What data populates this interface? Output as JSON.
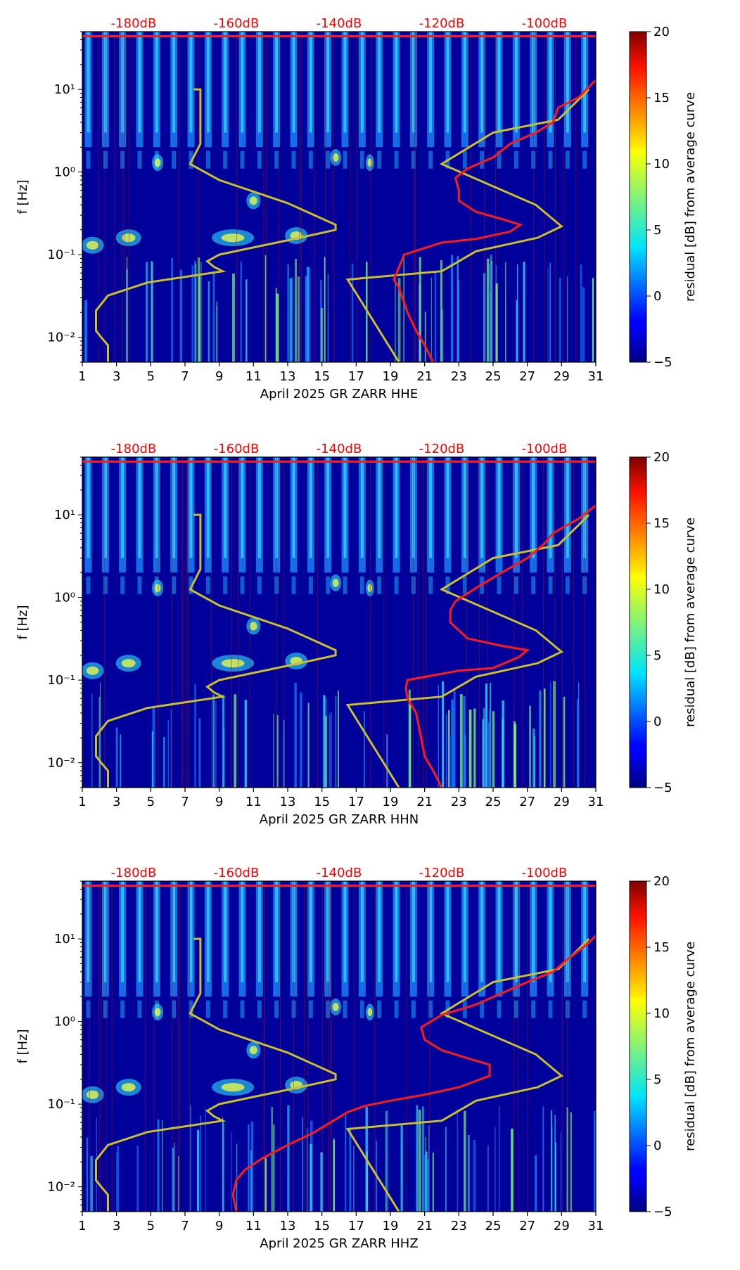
{
  "chart_data": [
    {
      "type": "heatmap",
      "channel": "HHE",
      "xlabel": "April 2025 GR ZARR  HHE",
      "ylabel": "f [Hz]",
      "x_ticks": [
        "1",
        "3",
        "5",
        "7",
        "9",
        "11",
        "13",
        "15",
        "17",
        "19",
        "21",
        "23",
        "25",
        "27",
        "29",
        "31"
      ],
      "xlim": [
        1,
        31
      ],
      "ylim": [
        0.005,
        50
      ],
      "y_ticks": [
        {
          "value": 0.01,
          "label": "10⁻²"
        },
        {
          "value": 0.1,
          "label": "10⁻¹"
        },
        {
          "value": 1,
          "label": "10⁰"
        },
        {
          "value": 10,
          "label": "10¹"
        }
      ],
      "db_labels": [
        {
          "label": "-180dB",
          "x": 4
        },
        {
          "label": "-160dB",
          "x": 10
        },
        {
          "label": "-140dB",
          "x": 16
        },
        {
          "label": "-120dB",
          "x": 22
        },
        {
          "label": "-100dB",
          "x": 28
        }
      ],
      "colorbar": {
        "label": "residual [dB] from average curve",
        "min": -5,
        "max": 20,
        "ticks": [
          "20",
          "15",
          "10",
          "5",
          "0",
          "−5"
        ]
      },
      "yellow_curve": [
        [
          2.5,
          0.005
        ],
        [
          2.5,
          0.008
        ],
        [
          2.1,
          0.01
        ],
        [
          1.8,
          0.012
        ],
        [
          1.8,
          0.021
        ],
        [
          2.5,
          0.032
        ],
        [
          4.8,
          0.046
        ],
        [
          9.2,
          0.063
        ],
        [
          8.7,
          0.071
        ],
        [
          8.3,
          0.083
        ],
        [
          9.0,
          0.1
        ],
        [
          13.7,
          0.16
        ],
        [
          15.8,
          0.2
        ],
        [
          15.8,
          0.23
        ],
        [
          13.0,
          0.42
        ],
        [
          9.0,
          0.8
        ],
        [
          7.3,
          1.25
        ],
        [
          7.9,
          2.2
        ],
        [
          7.9,
          10.0
        ],
        [
          7.5,
          10.0
        ]
      ],
      "yellow_curve2": [
        [
          19.5,
          0.005
        ],
        [
          16.5,
          0.05
        ],
        [
          22.0,
          0.063
        ],
        [
          24.0,
          0.11
        ],
        [
          27.6,
          0.16
        ],
        [
          29.0,
          0.22
        ],
        [
          27.5,
          0.4
        ],
        [
          22.0,
          1.25
        ],
        [
          25.0,
          3.0
        ],
        [
          28.8,
          4.3
        ],
        [
          30.6,
          10.0
        ]
      ],
      "red_curve": [
        [
          21.5,
          0.005
        ],
        [
          21.0,
          0.008
        ],
        [
          20.5,
          0.012
        ],
        [
          20.0,
          0.02
        ],
        [
          19.5,
          0.04
        ],
        [
          19.2,
          0.05
        ],
        [
          19.5,
          0.07
        ],
        [
          19.8,
          0.1
        ],
        [
          22.0,
          0.14
        ],
        [
          24.0,
          0.155
        ],
        [
          26.0,
          0.19
        ],
        [
          26.6,
          0.23
        ],
        [
          25.5,
          0.27
        ],
        [
          24.0,
          0.33
        ],
        [
          23.0,
          0.45
        ],
        [
          23.0,
          0.6
        ],
        [
          22.8,
          0.85
        ],
        [
          23.5,
          1.1
        ],
        [
          25.0,
          1.5
        ],
        [
          26.0,
          2.2
        ],
        [
          27.5,
          3.0
        ],
        [
          28.5,
          4.0
        ],
        [
          28.8,
          6.0
        ],
        [
          30.0,
          8.0
        ],
        [
          31.0,
          13.0
        ]
      ],
      "red_top_y": 44
    },
    {
      "type": "heatmap",
      "channel": "HHN",
      "xlabel": "April 2025 GR ZARR  HHN",
      "ylabel": "f [Hz]",
      "x_ticks": [
        "1",
        "3",
        "5",
        "7",
        "9",
        "11",
        "13",
        "15",
        "17",
        "19",
        "21",
        "23",
        "25",
        "27",
        "29",
        "31"
      ],
      "xlim": [
        1,
        31
      ],
      "ylim": [
        0.005,
        50
      ],
      "y_ticks": [
        {
          "value": 0.01,
          "label": "10⁻²"
        },
        {
          "value": 0.1,
          "label": "10⁻¹"
        },
        {
          "value": 1,
          "label": "10⁰"
        },
        {
          "value": 10,
          "label": "10¹"
        }
      ],
      "db_labels": [
        {
          "label": "-180dB",
          "x": 4
        },
        {
          "label": "-160dB",
          "x": 10
        },
        {
          "label": "-140dB",
          "x": 16
        },
        {
          "label": "-120dB",
          "x": 22
        },
        {
          "label": "-100dB",
          "x": 28
        }
      ],
      "colorbar": {
        "label": "residual [dB] from average curve",
        "min": -5,
        "max": 20,
        "ticks": [
          "20",
          "15",
          "10",
          "5",
          "0",
          "−5"
        ]
      },
      "yellow_curve": [
        [
          2.5,
          0.005
        ],
        [
          2.5,
          0.008
        ],
        [
          2.1,
          0.01
        ],
        [
          1.8,
          0.012
        ],
        [
          1.8,
          0.021
        ],
        [
          2.5,
          0.032
        ],
        [
          4.8,
          0.046
        ],
        [
          9.2,
          0.063
        ],
        [
          8.7,
          0.071
        ],
        [
          8.3,
          0.083
        ],
        [
          9.0,
          0.1
        ],
        [
          13.7,
          0.16
        ],
        [
          15.8,
          0.2
        ],
        [
          15.8,
          0.23
        ],
        [
          13.0,
          0.42
        ],
        [
          9.0,
          0.8
        ],
        [
          7.3,
          1.25
        ],
        [
          7.9,
          2.2
        ],
        [
          7.9,
          10.0
        ],
        [
          7.5,
          10.0
        ]
      ],
      "yellow_curve2": [
        [
          19.5,
          0.005
        ],
        [
          16.5,
          0.05
        ],
        [
          22.0,
          0.063
        ],
        [
          24.0,
          0.11
        ],
        [
          27.6,
          0.16
        ],
        [
          29.0,
          0.22
        ],
        [
          27.5,
          0.4
        ],
        [
          22.0,
          1.25
        ],
        [
          25.0,
          3.0
        ],
        [
          28.8,
          4.3
        ],
        [
          30.6,
          10.0
        ]
      ],
      "red_curve": [
        [
          22.0,
          0.005
        ],
        [
          21.5,
          0.008
        ],
        [
          21.0,
          0.012
        ],
        [
          20.8,
          0.02
        ],
        [
          20.5,
          0.04
        ],
        [
          20.0,
          0.06
        ],
        [
          19.9,
          0.08
        ],
        [
          20.0,
          0.1
        ],
        [
          23.0,
          0.13
        ],
        [
          25.0,
          0.14
        ],
        [
          26.5,
          0.19
        ],
        [
          27.0,
          0.23
        ],
        [
          25.5,
          0.26
        ],
        [
          23.5,
          0.32
        ],
        [
          22.5,
          0.5
        ],
        [
          22.5,
          0.7
        ],
        [
          22.8,
          0.9
        ],
        [
          24.0,
          1.3
        ],
        [
          25.5,
          2.0
        ],
        [
          27.0,
          3.0
        ],
        [
          28.0,
          4.5
        ],
        [
          28.5,
          6.0
        ],
        [
          30.0,
          9.0
        ],
        [
          31.0,
          13.0
        ]
      ],
      "red_top_y": 44
    },
    {
      "type": "heatmap",
      "channel": "HHZ",
      "xlabel": "April 2025 GR ZARR  HHZ",
      "ylabel": "f [Hz]",
      "x_ticks": [
        "1",
        "3",
        "5",
        "7",
        "9",
        "11",
        "13",
        "15",
        "17",
        "19",
        "21",
        "23",
        "25",
        "27",
        "29",
        "31"
      ],
      "xlim": [
        1,
        31
      ],
      "ylim": [
        0.005,
        50
      ],
      "y_ticks": [
        {
          "value": 0.01,
          "label": "10⁻²"
        },
        {
          "value": 0.1,
          "label": "10⁻¹"
        },
        {
          "value": 1,
          "label": "10⁰"
        },
        {
          "value": 10,
          "label": "10¹"
        }
      ],
      "db_labels": [
        {
          "label": "-180dB",
          "x": 4
        },
        {
          "label": "-160dB",
          "x": 10
        },
        {
          "label": "-140dB",
          "x": 16
        },
        {
          "label": "-120dB",
          "x": 22
        },
        {
          "label": "-100dB",
          "x": 28
        }
      ],
      "colorbar": {
        "label": "residual [dB] from average curve",
        "min": -5,
        "max": 20,
        "ticks": [
          "20",
          "15",
          "10",
          "5",
          "0",
          "−5"
        ]
      },
      "yellow_curve": [
        [
          2.5,
          0.005
        ],
        [
          2.5,
          0.008
        ],
        [
          2.1,
          0.01
        ],
        [
          1.8,
          0.012
        ],
        [
          1.8,
          0.021
        ],
        [
          2.5,
          0.032
        ],
        [
          4.8,
          0.046
        ],
        [
          9.2,
          0.063
        ],
        [
          8.7,
          0.071
        ],
        [
          8.3,
          0.083
        ],
        [
          9.0,
          0.1
        ],
        [
          13.7,
          0.16
        ],
        [
          15.8,
          0.2
        ],
        [
          15.8,
          0.23
        ],
        [
          13.0,
          0.42
        ],
        [
          9.0,
          0.8
        ],
        [
          7.3,
          1.25
        ],
        [
          7.9,
          2.2
        ],
        [
          7.9,
          10.0
        ],
        [
          7.5,
          10.0
        ]
      ],
      "yellow_curve2": [
        [
          19.5,
          0.005
        ],
        [
          16.5,
          0.05
        ],
        [
          22.0,
          0.063
        ],
        [
          24.0,
          0.11
        ],
        [
          27.6,
          0.16
        ],
        [
          29.0,
          0.22
        ],
        [
          27.5,
          0.4
        ],
        [
          22.0,
          1.25
        ],
        [
          25.0,
          3.0
        ],
        [
          28.8,
          4.3
        ],
        [
          30.6,
          10.0
        ]
      ],
      "red_curve": [
        [
          10.0,
          0.005
        ],
        [
          9.8,
          0.008
        ],
        [
          10.0,
          0.012
        ],
        [
          10.5,
          0.016
        ],
        [
          11.5,
          0.022
        ],
        [
          13.0,
          0.032
        ],
        [
          14.5,
          0.045
        ],
        [
          15.5,
          0.06
        ],
        [
          16.5,
          0.08
        ],
        [
          17.5,
          0.095
        ],
        [
          19.0,
          0.11
        ],
        [
          21.0,
          0.13
        ],
        [
          23.0,
          0.16
        ],
        [
          24.8,
          0.22
        ],
        [
          24.8,
          0.3
        ],
        [
          23.5,
          0.36
        ],
        [
          22.0,
          0.45
        ],
        [
          21.0,
          0.6
        ],
        [
          20.8,
          0.85
        ],
        [
          22.0,
          1.2
        ],
        [
          24.0,
          1.6
        ],
        [
          25.5,
          2.2
        ],
        [
          27.0,
          3.0
        ],
        [
          28.5,
          4.0
        ],
        [
          29.5,
          6.0
        ],
        [
          30.6,
          9.0
        ],
        [
          31.0,
          11.0
        ]
      ],
      "red_top_y": 44
    }
  ]
}
